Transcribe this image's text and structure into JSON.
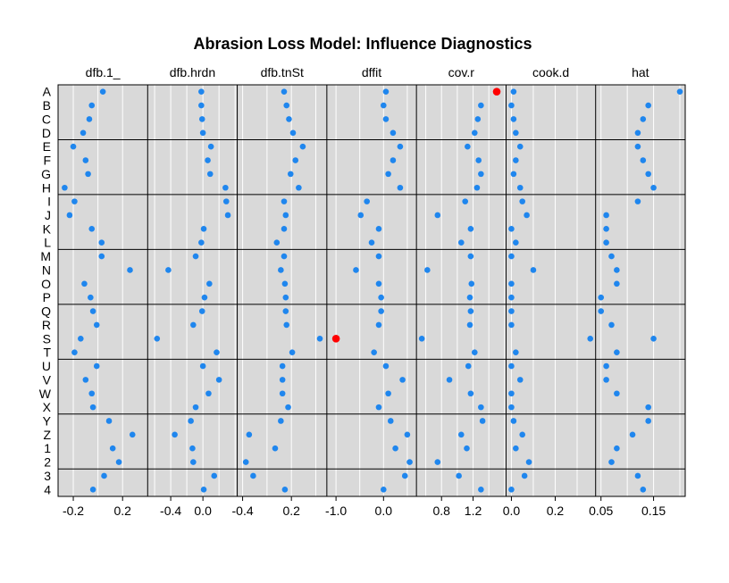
{
  "chart_data": {
    "type": "scatter",
    "title": "Abrasion Loss Model: Influence Diagnostics",
    "rows": [
      "A",
      "B",
      "C",
      "D",
      "E",
      "F",
      "G",
      "H",
      "I",
      "J",
      "K",
      "L",
      "M",
      "N",
      "O",
      "P",
      "Q",
      "R",
      "S",
      "T",
      "U",
      "V",
      "W",
      "X",
      "Y",
      "Z",
      "1",
      "2",
      "3",
      "4"
    ],
    "row_groups": [
      4,
      4,
      4,
      4,
      4,
      4,
      4,
      2
    ],
    "grid": true,
    "colors": {
      "normal": "#1f86ee",
      "influential": "#ff0000",
      "panel_bg": "#d9d9d9",
      "grid": "#ffffff"
    },
    "panels": [
      {
        "name": "dfb.1_",
        "xlim": [
          -0.28,
          0.36
        ],
        "ticks": [
          -0.2,
          0.2
        ],
        "tick_labels": [
          "-0.2",
          "0.2"
        ],
        "values": [
          0.04,
          -0.05,
          -0.07,
          -0.12,
          -0.2,
          -0.1,
          -0.08,
          -0.27,
          -0.19,
          -0.23,
          -0.05,
          0.03,
          0.03,
          0.26,
          -0.11,
          -0.06,
          -0.04,
          -0.01,
          -0.14,
          -0.19,
          -0.01,
          -0.1,
          -0.05,
          -0.04,
          0.09,
          0.28,
          0.12,
          0.17,
          0.05,
          -0.04
        ],
        "influential": []
      },
      {
        "name": "dfb.hrdn",
        "xlim": [
          -0.62,
          0.36
        ],
        "ticks": [
          -0.4,
          0.0
        ],
        "tick_labels": [
          "-0.4",
          "0.0"
        ],
        "values": [
          -0.02,
          -0.02,
          -0.01,
          0.0,
          0.1,
          0.06,
          0.09,
          0.28,
          0.29,
          0.31,
          0.01,
          -0.02,
          -0.09,
          -0.43,
          0.08,
          0.02,
          -0.01,
          -0.12,
          -0.57,
          0.17,
          0.0,
          0.2,
          0.07,
          -0.09,
          -0.15,
          -0.35,
          -0.13,
          -0.12,
          0.14,
          0.01
        ],
        "influential": []
      },
      {
        "name": "dfb.tnSt",
        "xlim": [
          -0.4,
          0.57
        ],
        "ticks": [
          -0.4,
          0.2
        ],
        "tick_labels": [
          "-0.4",
          "0.2"
        ],
        "values": [
          0.11,
          0.14,
          0.17,
          0.22,
          0.34,
          0.25,
          0.19,
          0.29,
          0.11,
          0.13,
          0.11,
          0.02,
          0.11,
          0.07,
          0.12,
          0.13,
          0.13,
          0.14,
          0.55,
          0.21,
          0.09,
          0.09,
          0.09,
          0.16,
          0.07,
          -0.32,
          0.0,
          -0.36,
          -0.27,
          0.12
        ],
        "influential": []
      },
      {
        "name": "dffit",
        "xlim": [
          -1.08,
          0.58
        ],
        "ticks": [
          -1.0,
          0.0
        ],
        "tick_labels": [
          "-1.0",
          "0.0"
        ],
        "values": [
          0.05,
          0.0,
          0.05,
          0.2,
          0.35,
          0.2,
          0.1,
          0.35,
          -0.35,
          -0.48,
          -0.1,
          -0.25,
          -0.1,
          -0.58,
          -0.1,
          -0.05,
          -0.05,
          -0.1,
          -1.0,
          -0.2,
          0.05,
          0.4,
          0.1,
          -0.1,
          0.15,
          0.5,
          0.25,
          0.55,
          0.45,
          0.0
        ],
        "influential": [
          18
        ]
      },
      {
        "name": "cov.r",
        "xlim": [
          0.55,
          1.55
        ],
        "ticks": [
          0.8,
          1.2
        ],
        "tick_labels": [
          "0.8",
          "1.2"
        ],
        "values": [
          1.5,
          1.3,
          1.26,
          1.22,
          1.13,
          1.27,
          1.3,
          1.25,
          1.1,
          0.75,
          1.17,
          1.05,
          1.17,
          0.62,
          1.18,
          1.16,
          1.17,
          1.16,
          0.55,
          1.22,
          1.14,
          0.9,
          1.17,
          1.3,
          1.32,
          1.05,
          1.12,
          0.75,
          1.02,
          1.3
        ],
        "influential": [
          0
        ]
      },
      {
        "name": "cook.d",
        "xlim": [
          0.0,
          0.36
        ],
        "ticks": [
          0.0,
          0.2
        ],
        "tick_labels": [
          "0.0",
          "0.2"
        ],
        "values": [
          0.01,
          0.0,
          0.01,
          0.02,
          0.04,
          0.02,
          0.01,
          0.04,
          0.05,
          0.07,
          0.0,
          0.02,
          0.0,
          0.1,
          0.0,
          0.0,
          0.0,
          0.0,
          0.36,
          0.02,
          0.0,
          0.04,
          0.0,
          0.0,
          0.01,
          0.05,
          0.02,
          0.08,
          0.06,
          0.0
        ],
        "influential": []
      },
      {
        "name": "hat",
        "xlim": [
          0.05,
          0.2
        ],
        "ticks": [
          0.05,
          0.15
        ],
        "tick_labels": [
          "0.05",
          "0.15"
        ],
        "values": [
          0.2,
          0.14,
          0.13,
          0.12,
          0.12,
          0.13,
          0.14,
          0.15,
          0.12,
          0.06,
          0.06,
          0.06,
          0.07,
          0.08,
          0.08,
          0.05,
          0.05,
          0.07,
          0.15,
          0.08,
          0.06,
          0.06,
          0.08,
          0.14,
          0.14,
          0.11,
          0.08,
          0.07,
          0.12,
          0.13
        ],
        "influential": []
      }
    ]
  }
}
